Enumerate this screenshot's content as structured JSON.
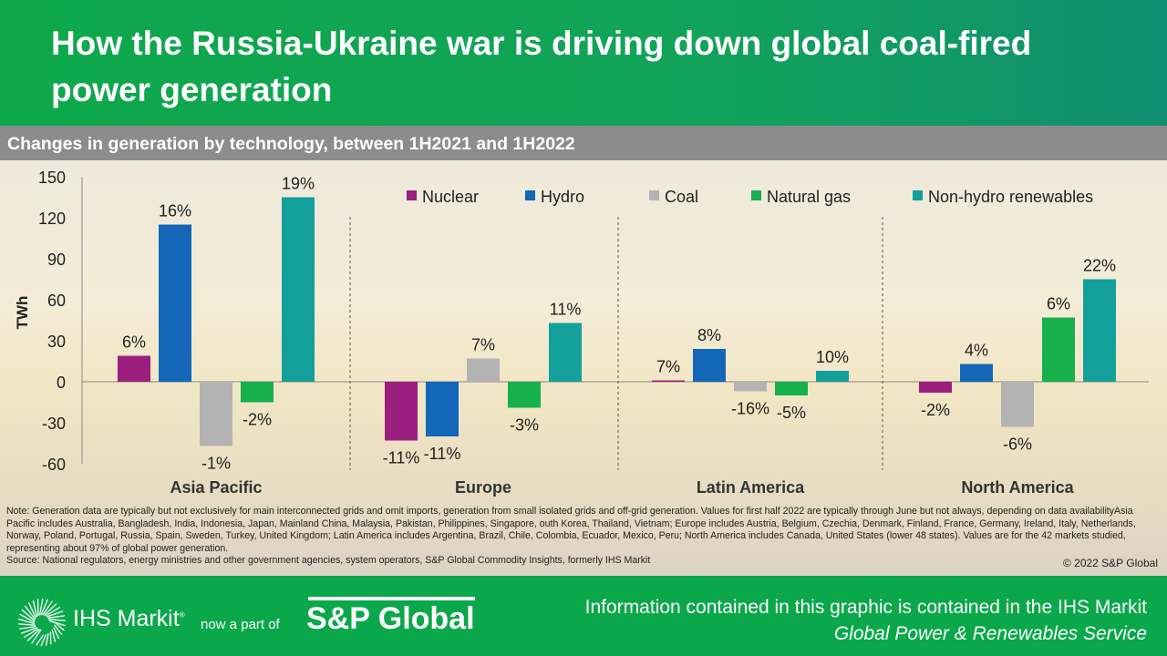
{
  "title": "How the Russia-Ukraine war is driving down global coal-fired power generation",
  "subtitle": "Changes in generation by technology, between 1H2021 and 1H2022",
  "chart_data": {
    "type": "bar",
    "ylabel": "TWh",
    "ylim": [
      -60,
      150
    ],
    "yticks": [
      150,
      120,
      90,
      60,
      30,
      0,
      -30,
      -60
    ],
    "grid": false,
    "legend": "top-right",
    "categories": [
      "Asia Pacific",
      "Europe",
      "Latin America",
      "North America"
    ],
    "series": [
      {
        "name": "Nuclear",
        "color": "#9c1f7f",
        "values": [
          19,
          -43,
          1,
          -8
        ],
        "labels": [
          "6%",
          "-11%",
          "7%",
          "-2%"
        ]
      },
      {
        "name": "Hydro",
        "color": "#1466b8",
        "values": [
          115,
          -40,
          24,
          13
        ],
        "labels": [
          "16%",
          "-11%",
          "8%",
          "4%"
        ]
      },
      {
        "name": "Coal",
        "color": "#b3b3b3",
        "values": [
          -47,
          17,
          -7,
          -33
        ],
        "labels": [
          "-1%",
          "7%",
          "-16%",
          "-6%"
        ]
      },
      {
        "name": "Natural gas",
        "color": "#16b04c",
        "values": [
          -15,
          -19,
          -10,
          47
        ],
        "labels": [
          "-2%",
          "-3%",
          "-5%",
          "6%"
        ]
      },
      {
        "name": "Non-hydro renewables",
        "color": "#14a09a",
        "values": [
          135,
          43,
          8,
          75
        ],
        "labels": [
          "19%",
          "11%",
          "10%",
          "22%"
        ]
      }
    ]
  },
  "notes": "Note: Generation data are typically  but not exclusively for  main interconnected grids and omit imports, generation from small isolated grids and off-grid generation. Values for first half 2022 are typically through June but not always, depending on data availabilityAsia Pacific includes Australia, Bangladesh, India, Indonesia, Japan, Mainland China, Malaysia, Pakistan, Philippines, Singapore, outh Korea, Thailand, Vietnam; Europe includes Austria, Belgium, Czechia, Denmark, Finland, France, Germany, Ireland, Italy,  Netherlands, Norway, Poland, Portugal, Russia, Spain, Sweden, Turkey, United Kingdom; Latin America includes Argentina, Brazil, Chile, Colombia, Ecuador, Mexico, Peru; North America includes Canada, United States (lower 48 states). Values are for the 42 markets studied, representing about 97% of global power generation.",
  "source": "Source: National regulators, energy ministries and other government agencies, system operators, S&P Global Commodity Insights, formerly IHS Markit",
  "copyright": "© 2022  S&P Global",
  "footer": {
    "ihs": "IHS Markit",
    "reg": "®",
    "nowpart": "now a part of",
    "spg": "S&P Global",
    "info1": "Information contained in this graphic is contained in the IHS Markit",
    "info2": "Global Power & Renewables Service"
  }
}
